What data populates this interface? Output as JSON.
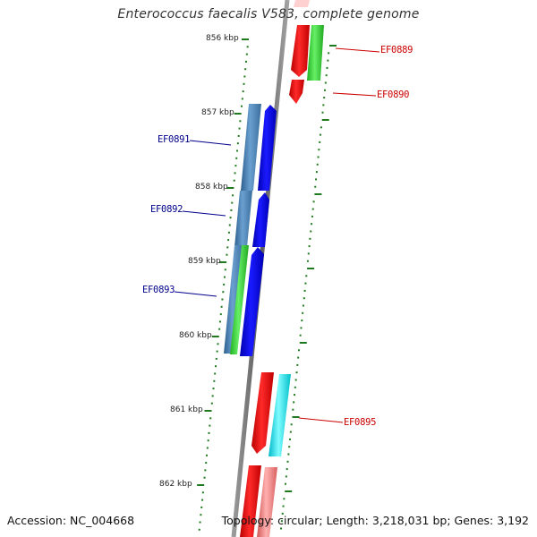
{
  "title": "Enterococcus faecalis V583, complete genome",
  "footer": {
    "accession": "Accession: NC_004668",
    "topology": "Topology: circular; Length: 3,218,031 bp; Genes: 3,192"
  },
  "colors": {
    "backbone": "#7a7a7a",
    "ticks": "#1f7a1f",
    "forward_label": "#00008b",
    "reverse_label": "#cc0000",
    "red": "#ff0000",
    "green": "#33dd33",
    "blue": "#0000ee",
    "steelblue": "#4682b4",
    "cyan": "#00f0f0",
    "pink": "#f08080"
  },
  "ticks": [
    {
      "label": "856 kbp"
    },
    {
      "label": "857 kbp"
    },
    {
      "label": "858 kbp"
    },
    {
      "label": "859 kbp"
    },
    {
      "label": "860 kbp"
    },
    {
      "label": "861 kbp"
    },
    {
      "label": "862 kbp"
    }
  ],
  "gene_labels": [
    {
      "name": "EF0889",
      "strand": "reverse"
    },
    {
      "name": "EF0890",
      "strand": "reverse"
    },
    {
      "name": "EF0891",
      "strand": "forward"
    },
    {
      "name": "EF0892",
      "strand": "forward"
    },
    {
      "name": "EF0893",
      "strand": "forward"
    },
    {
      "name": "EF0895",
      "strand": "reverse"
    }
  ]
}
